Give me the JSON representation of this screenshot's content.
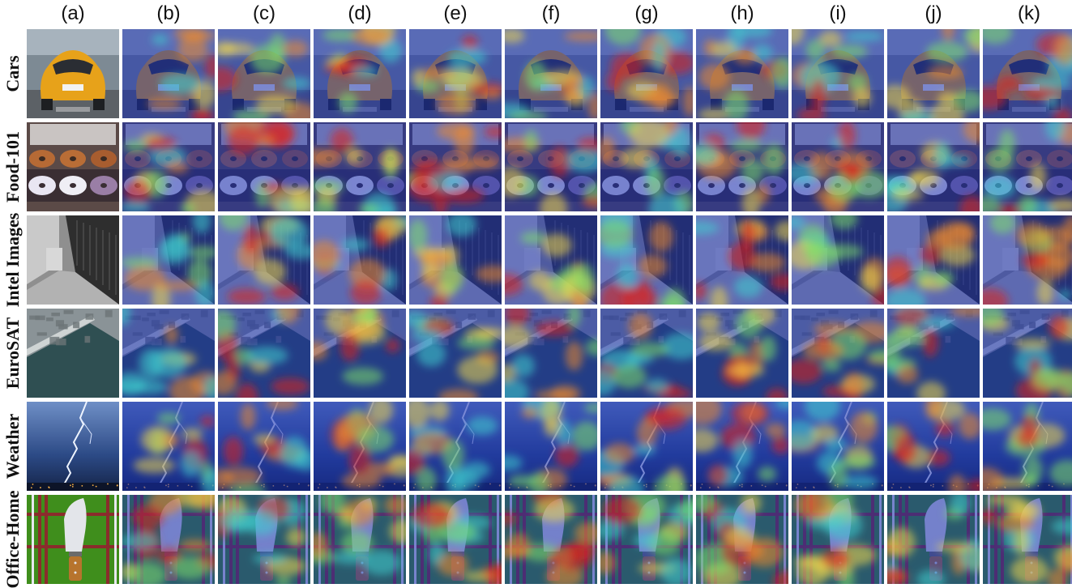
{
  "columns": [
    "(a)",
    "(b)",
    "(c)",
    "(d)",
    "(e)",
    "(f)",
    "(g)",
    "(h)",
    "(i)",
    "(j)",
    "(k)"
  ],
  "rows": [
    {
      "label": "Cars",
      "scene": "cars"
    },
    {
      "label": "Food-101",
      "scene": "food"
    },
    {
      "label": "Intel Images",
      "scene": "street"
    },
    {
      "label": "EuroSAT",
      "scene": "satellite"
    },
    {
      "label": "Weather",
      "scene": "lightning"
    },
    {
      "label": "Office-Home",
      "scene": "knife"
    }
  ],
  "first_column": "original-image",
  "other_columns": "attention-heatmap-overlay",
  "colors": {
    "heat_low": "#1a2fb0",
    "heat_mid": "#3fd0d0",
    "heat_high": "#e0201a",
    "background": "#ffffff"
  }
}
